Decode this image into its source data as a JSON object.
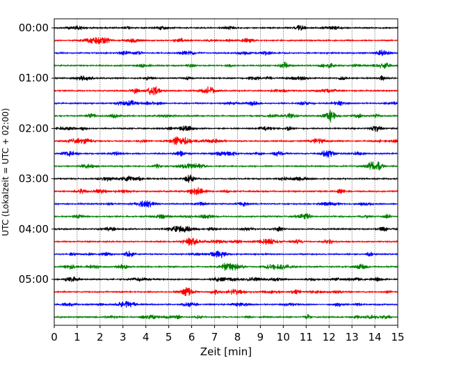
{
  "chart_data": {
    "type": "line",
    "title": "",
    "xlabel": "Zeit  [min]",
    "ylabel": "UTC (Lokalzeit = UTC + 02:00)",
    "xlim": [
      0,
      15
    ],
    "x_ticks": [
      "0",
      "1",
      "2",
      "3",
      "4",
      "5",
      "6",
      "7",
      "8",
      "9",
      "10",
      "11",
      "12",
      "13",
      "14",
      "15"
    ],
    "y_ticks": [
      {
        "label": "00:00",
        "trace": 0
      },
      {
        "label": "01:00",
        "trace": 4
      },
      {
        "label": "02:00",
        "trace": 8
      },
      {
        "label": "03:00",
        "trace": 12
      },
      {
        "label": "04:00",
        "trace": 16
      },
      {
        "label": "05:00",
        "trace": 20
      }
    ],
    "grid": "vertical dotted",
    "trace_count": 24,
    "trace_interval_minutes": 15,
    "colors": [
      "#000000",
      "#ff0000",
      "#0000ff",
      "#008000"
    ],
    "series": [
      {
        "trace": 0,
        "start": "00:00",
        "color": "#000000"
      },
      {
        "trace": 1,
        "start": "00:15",
        "color": "#ff0000"
      },
      {
        "trace": 2,
        "start": "00:30",
        "color": "#0000ff"
      },
      {
        "trace": 3,
        "start": "00:45",
        "color": "#008000"
      },
      {
        "trace": 4,
        "start": "01:00",
        "color": "#000000"
      },
      {
        "trace": 5,
        "start": "01:15",
        "color": "#ff0000"
      },
      {
        "trace": 6,
        "start": "01:30",
        "color": "#0000ff"
      },
      {
        "trace": 7,
        "start": "01:45",
        "color": "#008000"
      },
      {
        "trace": 8,
        "start": "02:00",
        "color": "#000000"
      },
      {
        "trace": 9,
        "start": "02:15",
        "color": "#ff0000"
      },
      {
        "trace": 10,
        "start": "02:30",
        "color": "#0000ff"
      },
      {
        "trace": 11,
        "start": "02:45",
        "color": "#008000"
      },
      {
        "trace": 12,
        "start": "03:00",
        "color": "#000000"
      },
      {
        "trace": 13,
        "start": "03:15",
        "color": "#ff0000"
      },
      {
        "trace": 14,
        "start": "03:30",
        "color": "#0000ff"
      },
      {
        "trace": 15,
        "start": "03:45",
        "color": "#008000"
      },
      {
        "trace": 16,
        "start": "04:00",
        "color": "#000000"
      },
      {
        "trace": 17,
        "start": "04:15",
        "color": "#ff0000"
      },
      {
        "trace": 18,
        "start": "04:30",
        "color": "#0000ff"
      },
      {
        "trace": 19,
        "start": "04:45",
        "color": "#008000"
      },
      {
        "trace": 20,
        "start": "05:00",
        "color": "#000000"
      },
      {
        "trace": 21,
        "start": "05:15",
        "color": "#ff0000"
      },
      {
        "trace": 22,
        "start": "05:30",
        "color": "#0000ff"
      },
      {
        "trace": 23,
        "start": "05:45",
        "color": "#008000"
      }
    ]
  }
}
